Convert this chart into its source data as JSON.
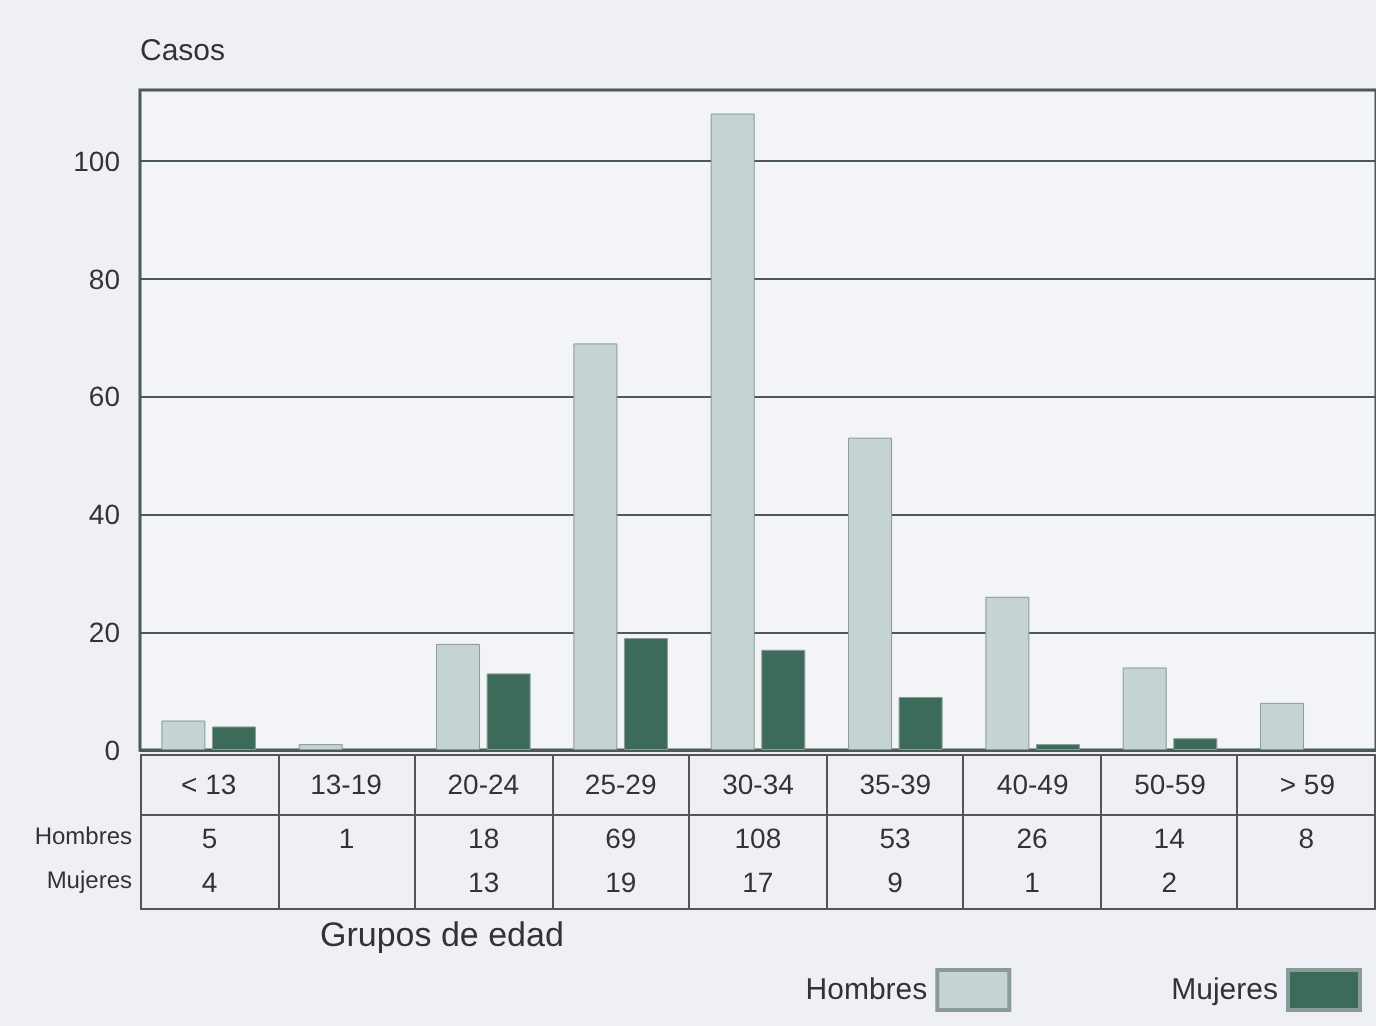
{
  "chart_data": {
    "type": "bar",
    "ylabel": "Casos",
    "xlabel": "Grupos de edad",
    "categories": [
      "< 13",
      "13-19",
      "20-24",
      "25-29",
      "30-34",
      "35-39",
      "40-49",
      "50-59",
      "> 59"
    ],
    "series": [
      {
        "name": "Hombres",
        "color": "#c5d3d3",
        "values": [
          5,
          1,
          18,
          69,
          108,
          53,
          26,
          14,
          8
        ]
      },
      {
        "name": "Mujeres",
        "color": "#3d6b5a",
        "values": [
          4,
          null,
          13,
          19,
          17,
          9,
          1,
          2,
          null
        ]
      }
    ],
    "ylim": [
      0,
      112
    ],
    "yticks": [
      0,
      20,
      40,
      60,
      80,
      100
    ],
    "grid": "y",
    "legend": "bottom right",
    "data_labels": true
  }
}
